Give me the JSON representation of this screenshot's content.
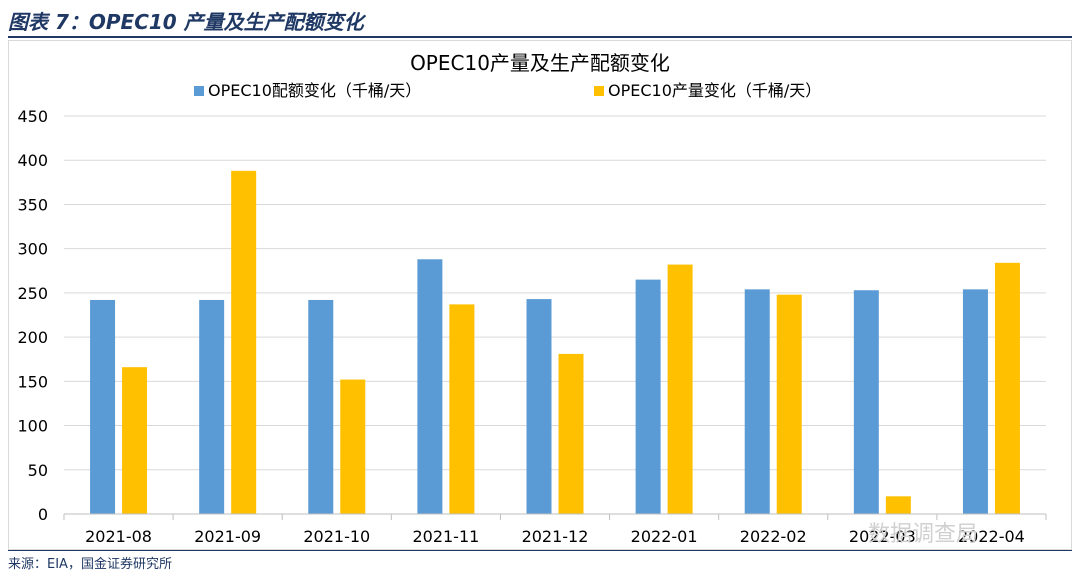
{
  "figure": {
    "title": "图表 7：OPEC10 产量及生产配额变化",
    "source": "来源：EIA，国金证券研究所",
    "watermark": "数据调查局"
  },
  "colors": {
    "quota": "#5b9bd5",
    "production": "#ffc000",
    "grid": "#d9d9d9",
    "axis_text": "#000000",
    "header": "#1f3864"
  },
  "chart_data": {
    "type": "bar",
    "title": "OPEC10产量及生产配额变化",
    "xlabel": "",
    "ylabel": "",
    "categories": [
      "2021-08",
      "2021-09",
      "2021-10",
      "2021-11",
      "2021-12",
      "2022-01",
      "2022-02",
      "2022-03",
      "2022-04"
    ],
    "series": [
      {
        "name": "OPEC10配额变化（千桶/天）",
        "color": "#5b9bd5",
        "values": [
          242,
          242,
          242,
          288,
          243,
          265,
          254,
          253,
          254
        ]
      },
      {
        "name": "OPEC10产量变化（千桶/天）",
        "color": "#ffc000",
        "values": [
          166,
          388,
          152,
          237,
          181,
          282,
          248,
          20,
          284
        ]
      }
    ],
    "ylim": [
      0,
      450
    ],
    "yticks": [
      0,
      50,
      100,
      150,
      200,
      250,
      300,
      350,
      400,
      450
    ],
    "grid": true,
    "legend_position": "top"
  }
}
